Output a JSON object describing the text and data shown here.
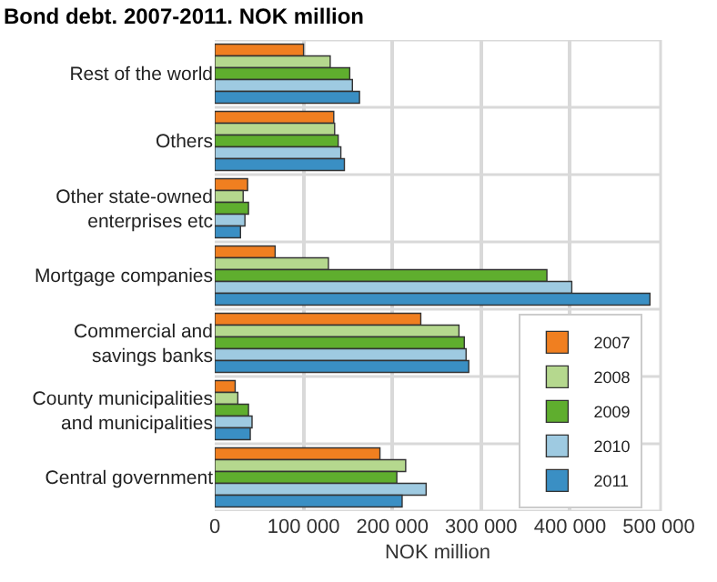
{
  "chart_data": {
    "type": "bar",
    "orientation": "horizontal",
    "title": "Bond debt. 2007-2011. NOK million",
    "xlabel": "NOK million",
    "categories": [
      "Rest of the world",
      "Others",
      "Other state-owned\nenterprises etc",
      "Mortgage companies",
      "Commercial and\nsavings banks",
      "County municipalities\nand municipalities",
      "Central government"
    ],
    "series": [
      {
        "name": "2007",
        "color": "#f07f20",
        "values": [
          100000,
          134000,
          37000,
          68000,
          232000,
          23000,
          186000
        ]
      },
      {
        "name": "2008",
        "color": "#b5d88e",
        "values": [
          130000,
          135000,
          32000,
          128000,
          275000,
          26000,
          215000
        ]
      },
      {
        "name": "2009",
        "color": "#5fae2e",
        "values": [
          152000,
          139000,
          38000,
          374000,
          281000,
          38000,
          205000
        ]
      },
      {
        "name": "2010",
        "color": "#9ecae1",
        "values": [
          155000,
          142000,
          34000,
          402000,
          283000,
          42000,
          238000
        ]
      },
      {
        "name": "2011",
        "color": "#3a8fc4",
        "values": [
          163000,
          146000,
          29000,
          490000,
          286000,
          40000,
          211000
        ]
      }
    ],
    "xlim": [
      0,
      502000
    ],
    "xticks": [
      0,
      {
        "value": 100000,
        "label": "100 000"
      },
      {
        "value": 200000,
        "label": "200 000"
      },
      {
        "value": 300000,
        "label": "300 000"
      },
      {
        "value": 400000,
        "label": "400 000"
      },
      {
        "value": 500000,
        "label": "500 000"
      }
    ],
    "grid": true,
    "legend": "bottom right"
  }
}
